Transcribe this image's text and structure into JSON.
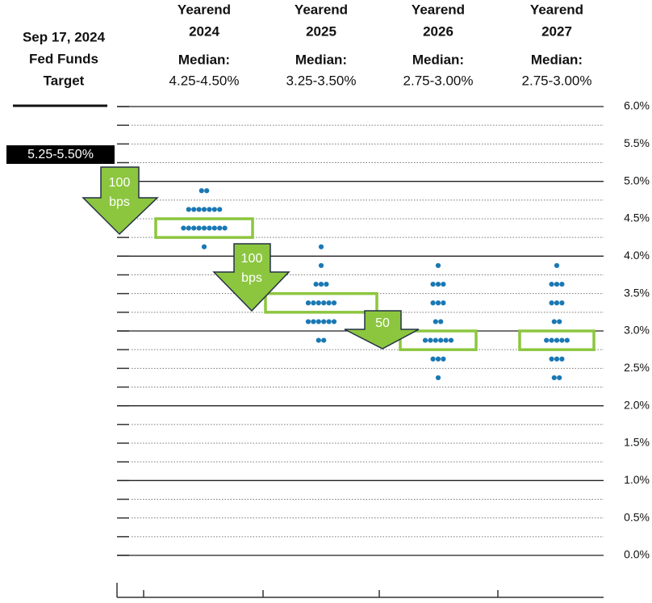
{
  "chart_data": {
    "type": "dot",
    "side_title": [
      "Sep 17, 2024",
      "Fed Funds",
      "Target"
    ],
    "current_target": "5.25-5.50%",
    "ylim": [
      0,
      6
    ],
    "yticks": [
      {
        "value": 0,
        "label": "0.0%"
      },
      {
        "value": 0.5,
        "label": "0.5%"
      },
      {
        "value": 1,
        "label": "1.0%"
      },
      {
        "value": 1.5,
        "label": "1.5%"
      },
      {
        "value": 2,
        "label": "2.0%"
      },
      {
        "value": 2.5,
        "label": "2.5%"
      },
      {
        "value": 3,
        "label": "3.0%"
      },
      {
        "value": 3.5,
        "label": "3.5%"
      },
      {
        "value": 4,
        "label": "4.0%"
      },
      {
        "value": 4.5,
        "label": "4.5%"
      },
      {
        "value": 5,
        "label": "5.0%"
      },
      {
        "value": 5.5,
        "label": "5.5%"
      },
      {
        "value": 6,
        "label": "6.0%"
      }
    ],
    "minor_grid_step": 0.25,
    "dot_color": "#1a78b4",
    "box_color": "#8cc63f",
    "columns": [
      {
        "header": "Yearend",
        "year": "2024",
        "median_label": "Median:",
        "median": "4.25-4.50%",
        "median_range": [
          4.25,
          4.5
        ],
        "values": [
          4.875,
          4.875,
          4.625,
          4.625,
          4.625,
          4.625,
          4.625,
          4.625,
          4.625,
          4.375,
          4.375,
          4.375,
          4.375,
          4.375,
          4.375,
          4.375,
          4.375,
          4.375,
          4.125
        ]
      },
      {
        "header": "Yearend",
        "year": "2025",
        "median_label": "Median:",
        "median": "3.25-3.50%",
        "median_range": [
          3.25,
          3.5
        ],
        "values": [
          4.125,
          3.875,
          3.625,
          3.625,
          3.625,
          3.375,
          3.375,
          3.375,
          3.375,
          3.375,
          3.375,
          3.125,
          3.125,
          3.125,
          3.125,
          3.125,
          3.125,
          2.875,
          2.875
        ]
      },
      {
        "header": "Yearend",
        "year": "2026",
        "median_label": "Median:",
        "median": "2.75-3.00%",
        "median_range": [
          2.75,
          3.0
        ],
        "values": [
          3.875,
          3.625,
          3.625,
          3.625,
          3.375,
          3.375,
          3.375,
          3.125,
          3.125,
          2.875,
          2.875,
          2.875,
          2.875,
          2.875,
          2.875,
          2.625,
          2.625,
          2.625,
          2.375
        ]
      },
      {
        "header": "Yearend",
        "year": "2027",
        "median_label": "Median:",
        "median": "2.75-3.00%",
        "median_range": [
          2.75,
          3.0
        ],
        "values": [
          3.875,
          3.625,
          3.625,
          3.625,
          3.375,
          3.375,
          3.375,
          3.125,
          3.125,
          2.875,
          2.875,
          2.875,
          2.875,
          2.875,
          2.625,
          2.625,
          2.625,
          2.375,
          2.375
        ]
      }
    ],
    "arrows": [
      {
        "lines": [
          "100",
          "bps"
        ]
      },
      {
        "lines": [
          "100",
          "bps"
        ]
      },
      {
        "lines": [
          "50"
        ]
      }
    ]
  }
}
